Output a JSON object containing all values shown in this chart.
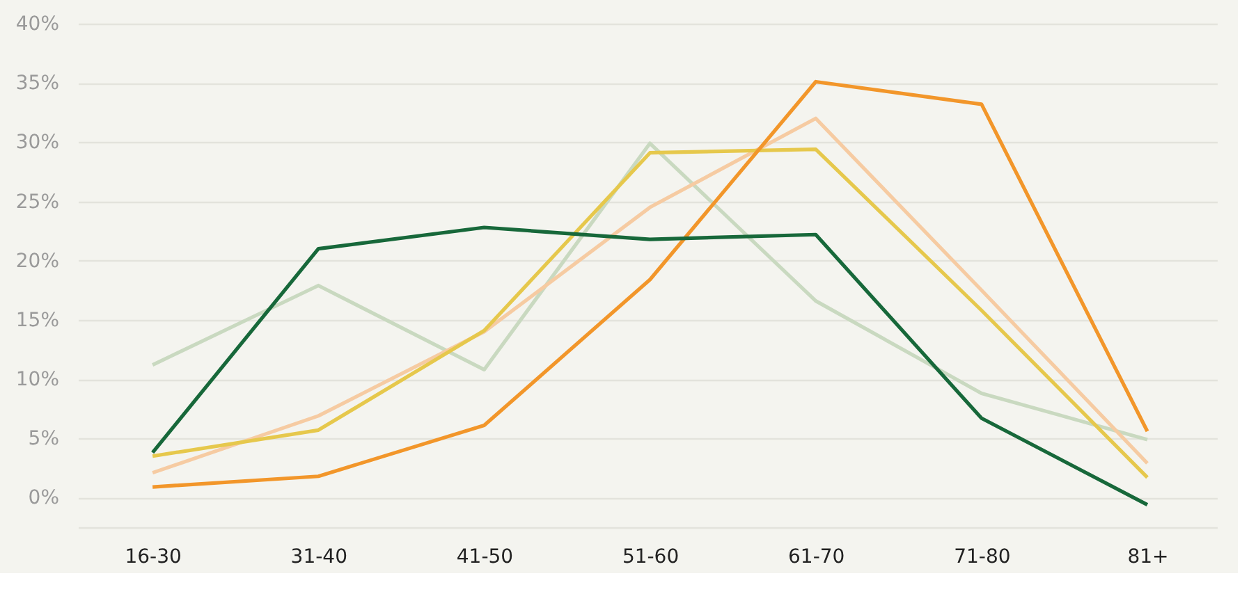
{
  "chart_data": {
    "type": "line",
    "categories": [
      "16-30",
      "31-40",
      "41-50",
      "51-60",
      "61-70",
      "71-80",
      "81+"
    ],
    "series": [
      {
        "color": "#c9d9c0",
        "values": [
          11.2,
          17.9,
          10.8,
          29.9,
          16.6,
          8.8,
          4.9
        ]
      },
      {
        "color": "#f6cba2",
        "values": [
          2.1,
          6.9,
          14.0,
          24.5,
          32.0,
          17.5,
          2.9
        ]
      },
      {
        "color": "#e6c84c",
        "values": [
          3.5,
          5.7,
          14.1,
          29.1,
          29.4,
          15.8,
          1.7
        ]
      },
      {
        "color": "#f2962a",
        "values": [
          0.9,
          1.8,
          6.1,
          18.4,
          35.1,
          33.2,
          5.6
        ]
      },
      {
        "color": "#17683a",
        "values": [
          3.8,
          21.0,
          22.8,
          21.8,
          22.2,
          6.7,
          -0.6
        ]
      }
    ],
    "ylim": [
      -2.5,
      40
    ],
    "yticks": [
      {
        "value": 0,
        "label": "0%"
      },
      {
        "value": 5,
        "label": "5%"
      },
      {
        "value": 10,
        "label": "10%"
      },
      {
        "value": 15,
        "label": "15%"
      },
      {
        "value": 20,
        "label": "20%"
      },
      {
        "value": 25,
        "label": "25%"
      },
      {
        "value": 30,
        "label": "30%"
      },
      {
        "value": 35,
        "label": "35%"
      },
      {
        "value": 40,
        "label": "40%"
      }
    ],
    "grid": "y",
    "legend": false,
    "marker": "none",
    "line_style": "solid"
  }
}
